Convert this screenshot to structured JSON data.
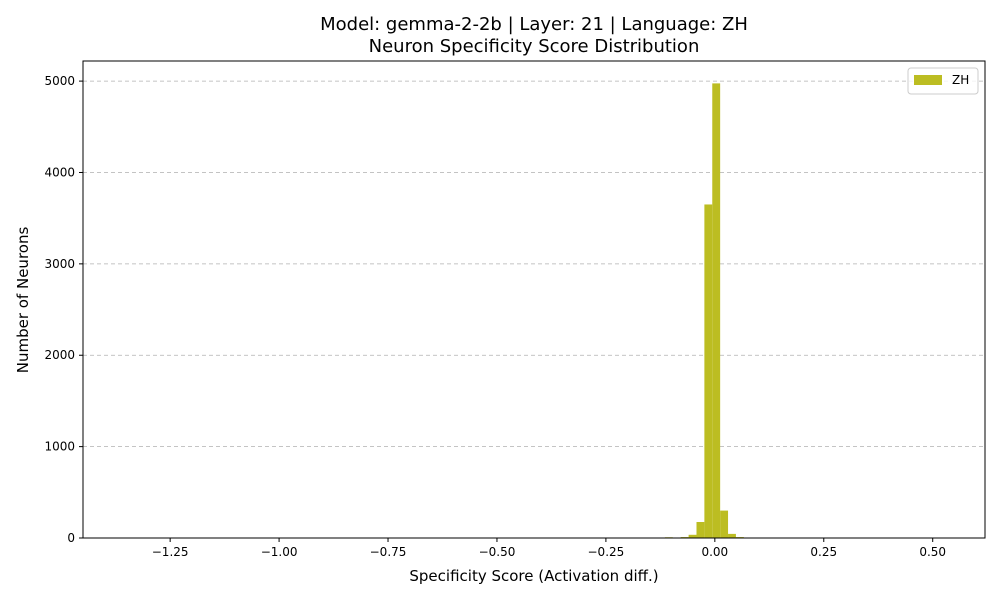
{
  "chart_data": {
    "type": "bar",
    "title": "Model: gemma-2-2b | Layer: 21 | Language: ZH",
    "subtitle": "Neuron Specificity Score Distribution",
    "xlabel": "Specificity Score (Activation diff.)",
    "ylabel": "Number of Neurons",
    "xlim": [
      -1.45,
      0.62
    ],
    "ylim": [
      0,
      5220
    ],
    "x_ticks": [
      -1.25,
      -1.0,
      -0.75,
      -0.5,
      -0.25,
      0.0,
      0.25,
      0.5
    ],
    "x_tick_labels": [
      "−1.25",
      "−1.00",
      "−0.75",
      "−0.50",
      "−0.25",
      "0.00",
      "0.25",
      "0.50"
    ],
    "y_ticks": [
      0,
      1000,
      2000,
      3000,
      4000,
      5000
    ],
    "y_tick_labels": [
      "0",
      "1000",
      "2000",
      "3000",
      "4000",
      "5000"
    ],
    "grid": "y-dashed",
    "legend": "top-right",
    "color": "#bcbd22",
    "series": [
      {
        "name": "ZH",
        "bins": [
          {
            "x0": -0.1146,
            "x1": -0.0965,
            "count": 8
          },
          {
            "x0": -0.0965,
            "x1": -0.0783,
            "count": 4
          },
          {
            "x0": -0.0783,
            "x1": -0.0602,
            "count": 10
          },
          {
            "x0": -0.0602,
            "x1": -0.0421,
            "count": 35
          },
          {
            "x0": -0.0421,
            "x1": -0.024,
            "count": 175
          },
          {
            "x0": -0.024,
            "x1": -0.0059,
            "count": 3650
          },
          {
            "x0": -0.0059,
            "x1": 0.0122,
            "count": 4975
          },
          {
            "x0": 0.0122,
            "x1": 0.0303,
            "count": 300
          },
          {
            "x0": 0.0303,
            "x1": 0.0484,
            "count": 45
          },
          {
            "x0": 0.0484,
            "x1": 0.0666,
            "count": 10
          },
          {
            "x0": 0.0666,
            "x1": 0.0847,
            "count": 3
          }
        ]
      }
    ]
  }
}
